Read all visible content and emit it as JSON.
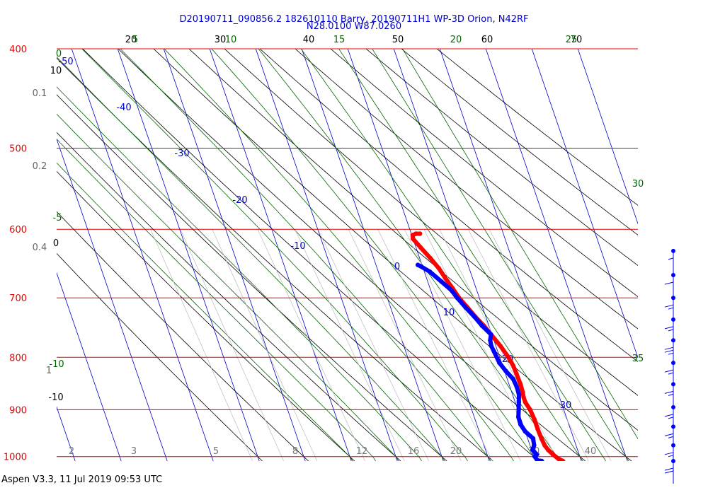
{
  "chart_data": {
    "type": "line",
    "title": "D20190711_090856.2 182610110 Barry, 20190711H1 WP-3D Orion, N42RF",
    "subtitle": "N28.0100 W87.0260",
    "y_axis_scale": "log",
    "y_axis_direction": "inverted",
    "pressure_ticks": [
      "400",
      "500",
      "600",
      "700",
      "800",
      "900",
      "1000"
    ],
    "pressure_values": [
      400,
      500,
      600,
      700,
      800,
      900,
      1000
    ],
    "ylim": [
      1010,
      400
    ],
    "xlim": [
      -36,
      50
    ],
    "bottom_ticks": [
      "2",
      "3",
      "5",
      "8",
      "12",
      "16",
      "20",
      "30",
      "40"
    ],
    "top_ticks_black": [
      "20",
      "30",
      "40",
      "50",
      "60",
      "70"
    ],
    "top_ticks_green": [
      "5",
      "10",
      "15",
      "20",
      "25"
    ],
    "isotherm_labels": [
      {
        "value": -50,
        "text": "-50"
      },
      {
        "value": -40,
        "text": "-40"
      },
      {
        "value": -30,
        "text": "-30"
      },
      {
        "value": -20,
        "text": "-20"
      },
      {
        "value": -10,
        "text": "-10"
      },
      {
        "value": 0,
        "text": "0"
      },
      {
        "value": 10,
        "text": "10"
      },
      {
        "value": 20,
        "text": "20"
      },
      {
        "value": 30,
        "text": "30"
      }
    ],
    "left_side_labels": [
      {
        "text": "0",
        "color": "green"
      },
      {
        "text": "10",
        "color": "black"
      },
      {
        "text": "0.1",
        "color": "gray"
      },
      {
        "text": "0.2",
        "color": "gray"
      },
      {
        "text": "-5",
        "color": "green"
      },
      {
        "text": "0.4",
        "color": "gray"
      },
      {
        "text": "0",
        "color": "black"
      },
      {
        "text": "-10",
        "color": "green"
      },
      {
        "text": "1",
        "color": "gray"
      },
      {
        "text": "-10",
        "color": "black"
      }
    ],
    "right_side_labels": [
      "30",
      "35"
    ],
    "series": [
      {
        "name": "temperature",
        "color": "#ff0000",
        "points": [
          [
            1010,
            26.0
          ],
          [
            1005,
            25.2
          ],
          [
            995,
            24.3
          ],
          [
            985,
            23.6
          ],
          [
            975,
            23.2
          ],
          [
            960,
            23.0
          ],
          [
            940,
            22.9
          ],
          [
            920,
            22.9
          ],
          [
            900,
            22.7
          ],
          [
            885,
            22.2
          ],
          [
            875,
            22.2
          ],
          [
            865,
            22.4
          ],
          [
            850,
            22.5
          ],
          [
            830,
            22.4
          ],
          [
            815,
            22.3
          ],
          [
            800,
            21.9
          ],
          [
            780,
            21.0
          ],
          [
            760,
            19.8
          ],
          [
            745,
            18.9
          ],
          [
            730,
            17.7
          ],
          [
            715,
            16.7
          ],
          [
            700,
            15.6
          ],
          [
            685,
            14.9
          ],
          [
            670,
            14.1
          ],
          [
            655,
            13.4
          ],
          [
            640,
            12.3
          ],
          [
            625,
            11.0
          ],
          [
            613,
            10.0
          ],
          [
            608,
            10.2
          ],
          [
            606,
            11.0
          ],
          [
            606,
            11.9
          ]
        ]
      },
      {
        "name": "dewpoint",
        "color": "#0000ff",
        "points": [
          [
            1010,
            21.4
          ],
          [
            1008,
            20.5
          ],
          [
            1000,
            20.2
          ],
          [
            995,
            20.8
          ],
          [
            985,
            20.2
          ],
          [
            975,
            20.9
          ],
          [
            960,
            21.2
          ],
          [
            945,
            20.0
          ],
          [
            930,
            19.5
          ],
          [
            915,
            19.6
          ],
          [
            900,
            20.2
          ],
          [
            885,
            20.8
          ],
          [
            870,
            21.4
          ],
          [
            855,
            21.5
          ],
          [
            840,
            21.3
          ],
          [
            825,
            20.3
          ],
          [
            810,
            19.5
          ],
          [
            790,
            19.2
          ],
          [
            780,
            19.0
          ],
          [
            770,
            19.2
          ],
          [
            760,
            19.8
          ],
          [
            745,
            18.5
          ],
          [
            730,
            17.5
          ],
          [
            715,
            16.3
          ],
          [
            700,
            15.2
          ],
          [
            688,
            14.5
          ],
          [
            675,
            13.0
          ],
          [
            660,
            11.2
          ],
          [
            652,
            9.6
          ],
          [
            650,
            9.1
          ]
        ]
      }
    ],
    "wind_barbs": {
      "levels": [
        {
          "pressure": 630,
          "speed_kt": 5
        },
        {
          "pressure": 665,
          "speed_kt": 10
        },
        {
          "pressure": 700,
          "speed_kt": 15
        },
        {
          "pressure": 735,
          "speed_kt": 15
        },
        {
          "pressure": 770,
          "speed_kt": 25
        },
        {
          "pressure": 810,
          "speed_kt": 15
        },
        {
          "pressure": 850,
          "speed_kt": 15
        },
        {
          "pressure": 895,
          "speed_kt": 15
        },
        {
          "pressure": 935,
          "speed_kt": 15
        },
        {
          "pressure": 975,
          "speed_kt": 15
        },
        {
          "pressure": 1010,
          "speed_kt": 20
        }
      ]
    }
  },
  "footer": {
    "text": "Aspen V3.3, 11 Jul 2019  09:53 UTC"
  },
  "colors": {
    "isobar": "#dd0000",
    "isotherm": "#0000cc",
    "dry_adiabat": "#000000",
    "moist_adiabat": "#006600",
    "mixing_ratio": "#000000",
    "title": "#0000cc",
    "temperature": "#ff0000",
    "dewpoint": "#0000ff",
    "wind_barb": "#0000ff"
  }
}
